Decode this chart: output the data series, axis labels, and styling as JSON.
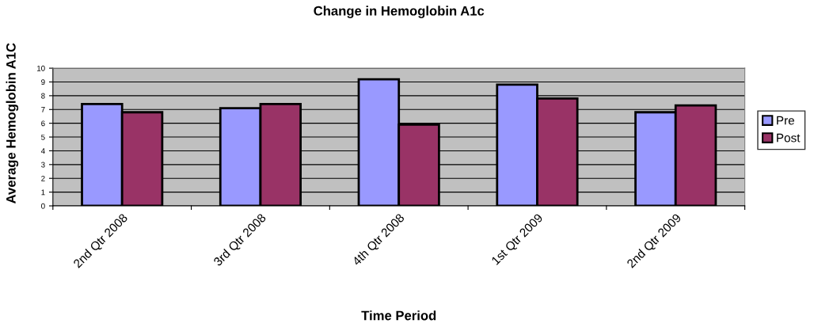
{
  "chart_data": {
    "type": "bar",
    "title": "Change in Hemoglobin A1c",
    "xlabel": "Time Period",
    "ylabel": "Average Hemoglobin A1C",
    "categories": [
      "2nd Qtr 2008",
      "3rd Qtr 2008",
      "4th Qtr 2008",
      "1st Qtr 2009",
      "2nd Qtr 2009"
    ],
    "series": [
      {
        "name": "Pre",
        "color": "#9999ff",
        "values": [
          7.4,
          7.1,
          9.2,
          8.8,
          6.8
        ]
      },
      {
        "name": "Post",
        "color": "#993366",
        "values": [
          6.8,
          7.4,
          5.9,
          7.8,
          7.3
        ]
      }
    ],
    "ylim": [
      0,
      10
    ],
    "yticks": [
      0,
      1,
      2,
      3,
      4,
      5,
      6,
      7,
      8,
      9,
      10
    ],
    "grid": "y",
    "legend": "right"
  }
}
